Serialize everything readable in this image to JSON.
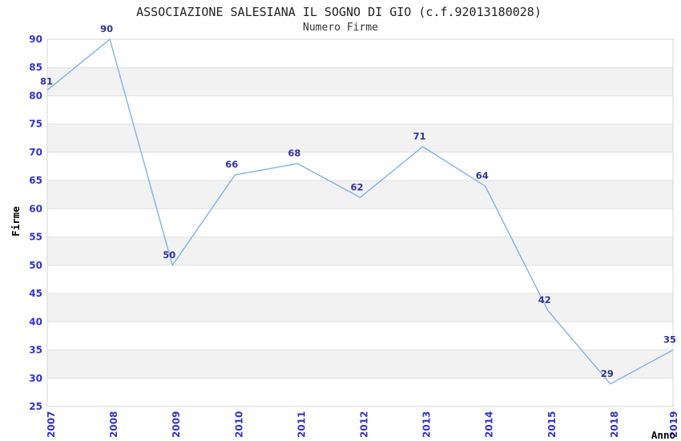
{
  "title": "ASSOCIAZIONE SALESIANA IL SOGNO DI GIO (c.f.92013180028)",
  "subtitle": "Numero Firme",
  "chart_data": {
    "type": "line",
    "title": "ASSOCIAZIONE SALESIANA IL SOGNO DI GIO (c.f.92013180028)",
    "subtitle": "Numero Firme",
    "categories": [
      "2007",
      "2008",
      "2009",
      "2010",
      "2011",
      "2012",
      "2013",
      "2014",
      "2015",
      "2018",
      "2019"
    ],
    "values": [
      81,
      90,
      50,
      66,
      68,
      62,
      71,
      64,
      42,
      29,
      35
    ],
    "xlabel": "Anno",
    "ylabel": "Firme",
    "ylim": [
      25,
      90
    ],
    "yticks": [
      25,
      30,
      35,
      40,
      45,
      50,
      55,
      60,
      65,
      70,
      75,
      80,
      85,
      90
    ],
    "grid": true,
    "legend_position": "none",
    "band_pattern": "alternating horizontal bands of 5 units (30-35, 40-45, 50-55, 60-65, 70-75, 80-85 shaded)",
    "colors": {
      "line": "#7eb2e8",
      "tick_labels": "#3333cc",
      "data_labels": "#333399",
      "band_fill": "#f2f2f2",
      "gridline": "#e0e0e0",
      "plot_border": "#d6d6d6",
      "title_text": "#222222",
      "axis_title_text": "#000000"
    }
  }
}
